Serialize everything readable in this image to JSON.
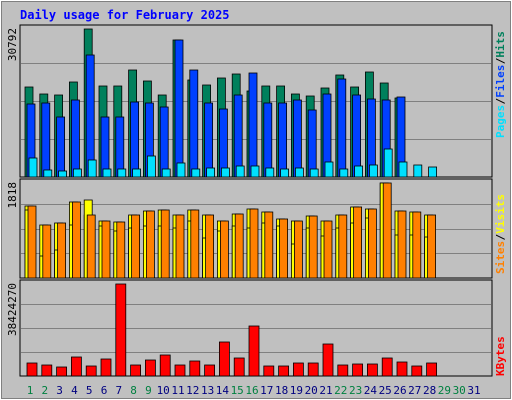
{
  "title": "Daily usage for February 2025",
  "colors": {
    "hits": "#00805c",
    "files": "#0040ff",
    "pages": "#00e0ff",
    "visits": "#ffff00",
    "sites": "#ff8000",
    "kbytes": "#ff0000",
    "weekday_label": "#000080",
    "weekend_label": "#008040"
  },
  "chart_data": [
    {
      "type": "bar",
      "name_axis": "Pages / Files / Hits",
      "ymax_label": "30792",
      "ymax": 30792,
      "series": [
        {
          "name": "Hits",
          "values": [
            18800,
            17300,
            17100,
            19700,
            30792,
            19000,
            19000,
            22200,
            19900,
            17100,
            28500,
            20200,
            19100,
            20500,
            21500,
            17800,
            18900,
            19000,
            17300,
            16900,
            18500,
            21300,
            18800,
            21900,
            19600,
            16500,
            0,
            0
          ]
        },
        {
          "name": "Files",
          "values": [
            15200,
            15300,
            12500,
            16000,
            25300,
            12500,
            12500,
            15600,
            15400,
            14600,
            28500,
            22200,
            15500,
            14100,
            17100,
            21600,
            15500,
            15500,
            16100,
            14000,
            17300,
            20300,
            17000,
            16300,
            16100,
            16600,
            0,
            0
          ]
        },
        {
          "name": "Pages",
          "values": [
            3900,
            1500,
            1200,
            1600,
            3500,
            1700,
            1700,
            1700,
            4300,
            1700,
            3000,
            1700,
            1800,
            1800,
            2200,
            2300,
            1800,
            1700,
            1900,
            1700,
            3100,
            1700,
            2200,
            2500,
            5800,
            3200,
            2600,
            2000
          ]
        }
      ]
    },
    {
      "type": "bar",
      "name_axis": "Sites / Visits",
      "ymax_label": "1818",
      "ymax": 1818,
      "series": [
        {
          "name": "Visits",
          "values": [
            1300,
            420,
            530,
            1020,
            1500,
            1000,
            900,
            950,
            1000,
            1000,
            950,
            1100,
            770,
            900,
            1000,
            950,
            1050,
            1000,
            650,
            950,
            800,
            950,
            1050,
            1150,
            1818,
            820,
            830,
            780
          ]
        },
        {
          "name": "Sites",
          "values": [
            1380,
            1010,
            1050,
            1450,
            1200,
            1100,
            1070,
            1200,
            1280,
            1300,
            1200,
            1300,
            1210,
            1100,
            1220,
            1330,
            1270,
            1120,
            1100,
            1190,
            1100,
            1200,
            1350,
            1330,
            1818,
            1290,
            1270,
            1200
          ]
        }
      ]
    },
    {
      "type": "bar",
      "name_axis": "KBytes",
      "ymax_label": "38424270",
      "ymax": 38424270,
      "series": [
        {
          "name": "KBytes",
          "values": [
            5500000,
            4400000,
            3600000,
            7900000,
            4200000,
            7000000,
            38424270,
            4600000,
            6800000,
            8600000,
            4700000,
            6100000,
            4400000,
            14000000,
            7700000,
            20700000,
            4100000,
            4300000,
            5300000,
            5300000,
            13500000,
            4600000,
            5200000,
            4900000,
            7700000,
            5700000,
            4300000,
            5500000
          ]
        }
      ]
    },
    {
      "type": "bar",
      "name": "x-axis-days",
      "categories": [
        "1",
        "2",
        "3",
        "4",
        "5",
        "6",
        "7",
        "8",
        "9",
        "10",
        "11",
        "12",
        "13",
        "14",
        "15",
        "16",
        "17",
        "18",
        "19",
        "20",
        "21",
        "22",
        "23",
        "24",
        "25",
        "26",
        "27",
        "28",
        "29",
        "30",
        "31"
      ],
      "weekend_days": [
        "1",
        "2",
        "8",
        "9",
        "15",
        "16",
        "22",
        "23",
        "29",
        "30"
      ]
    }
  ],
  "legend": {
    "pages": "Pages",
    "files": "Files",
    "hits": "Hits",
    "visits": "Visits",
    "sites": "Sites",
    "kbytes": "KBytes",
    "sep": "/"
  }
}
